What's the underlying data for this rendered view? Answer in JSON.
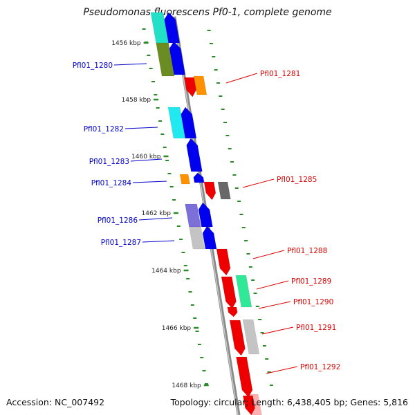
{
  "title": "Pseudomonas fluorescens Pf0-1, complete genome",
  "accession": "Accession: NC_007492",
  "topology": "Topology: circular; Length: 6,438,405 bp; Genes: 5,816",
  "colors": {
    "backbone": "#8a8a8a",
    "tick": "#2a8a2a",
    "minus_strand_label": "#0000cc",
    "plus_strand_label": "#dd0000"
  },
  "scale_labels": [
    "1456 kbp",
    "1458 kbp",
    "1460 kbp",
    "1462 kbp",
    "1464 kbp",
    "1466 kbp",
    "1468 kbp"
  ],
  "genes": [
    {
      "label": "Pfl01_1280",
      "strand": "minus"
    },
    {
      "label": "Pfl01_1281",
      "strand": "plus"
    },
    {
      "label": "Pfl01_1282",
      "strand": "minus"
    },
    {
      "label": "Pfl01_1283",
      "strand": "minus"
    },
    {
      "label": "Pfl01_1284",
      "strand": "minus"
    },
    {
      "label": "Pfl01_1285",
      "strand": "plus"
    },
    {
      "label": "Pfl01_1286",
      "strand": "minus"
    },
    {
      "label": "Pfl01_1287",
      "strand": "minus"
    },
    {
      "label": "Pfl01_1288",
      "strand": "plus"
    },
    {
      "label": "Pfl01_1289",
      "strand": "plus"
    },
    {
      "label": "Pfl01_1290",
      "strand": "plus"
    },
    {
      "label": "Pfl01_1291",
      "strand": "plus"
    },
    {
      "label": "Pfl01_1292",
      "strand": "plus"
    }
  ]
}
